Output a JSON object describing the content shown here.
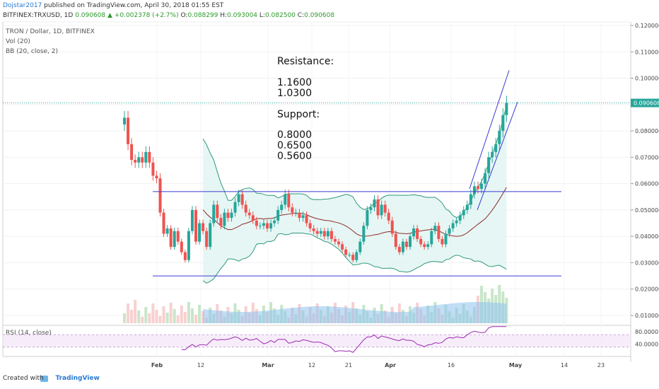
{
  "header": {
    "author": "Dojstar2017",
    "published": "published on TradingView.com, April 30, 2018 01:55 EST",
    "symbol": "BITFINEX:TRXUSD, 1D",
    "last": "0.090608",
    "change": "+0.002378 (+2.7%)",
    "ohlc": {
      "o": "0.088299",
      "h": "0.093004",
      "l": "0.082500",
      "c": "0.090608"
    }
  },
  "overlays": {
    "title": "TRON / Dollar, 1D, BITFINEX",
    "vol": "Vol (20)",
    "bb": "BB (20, close, 2)",
    "rsi": "RSI (14, close)"
  },
  "annotation": {
    "resistance_title": "Resistance:",
    "resistance": [
      "1.1600",
      "1.0300"
    ],
    "support_title": "Support:",
    "support": [
      "0.8000",
      "0.6500",
      "0.5600"
    ]
  },
  "footer": {
    "created_with": "Created with",
    "brand": "TradingView"
  },
  "colors": {
    "up": "#26a69a",
    "down": "#ef5350",
    "trend": "#3b3bd1",
    "bbband": "#2e9a7a",
    "bbmid": "#8b2c2c",
    "rsi": "#9c27b0",
    "price_label": "#26a69a"
  },
  "chart_data": {
    "type": "candlestick",
    "y_ticks": [
      "0.120000",
      "0.110000",
      "0.100000",
      "0.090000",
      "0.080000",
      "0.070000",
      "0.060000",
      "0.050000",
      "0.040000",
      "0.030000",
      "0.020000",
      "0.010000"
    ],
    "y_range": [
      0.0,
      0.12
    ],
    "x_ticks": [
      "Feb",
      "12",
      "Mar",
      "12",
      "21",
      "Apr",
      "16",
      "May",
      "14",
      "23"
    ],
    "last_price_label": "0.090608",
    "rsi_ticks": [
      "80.0000",
      "40.0000"
    ],
    "closes": [
      0.085,
      0.075,
      0.069,
      0.068,
      0.07,
      0.068,
      0.072,
      0.068,
      0.063,
      0.062,
      0.049,
      0.041,
      0.043,
      0.036,
      0.042,
      0.038,
      0.034,
      0.031,
      0.042,
      0.05,
      0.038,
      0.045,
      0.042,
      0.036,
      0.045,
      0.052,
      0.047,
      0.044,
      0.049,
      0.047,
      0.049,
      0.053,
      0.056,
      0.052,
      0.049,
      0.048,
      0.046,
      0.044,
      0.044,
      0.045,
      0.043,
      0.045,
      0.046,
      0.05,
      0.052,
      0.056,
      0.051,
      0.049,
      0.049,
      0.047,
      0.048,
      0.045,
      0.043,
      0.042,
      0.041,
      0.042,
      0.04,
      0.042,
      0.039,
      0.038,
      0.037,
      0.035,
      0.033,
      0.033,
      0.031,
      0.034,
      0.038,
      0.044,
      0.05,
      0.051,
      0.054,
      0.048,
      0.052,
      0.049,
      0.046,
      0.041,
      0.036,
      0.034,
      0.038,
      0.036,
      0.04,
      0.043,
      0.039,
      0.037,
      0.036,
      0.037,
      0.042,
      0.044,
      0.039,
      0.037,
      0.041,
      0.043,
      0.045,
      0.046,
      0.048,
      0.05,
      0.052,
      0.056,
      0.059,
      0.058,
      0.06,
      0.064,
      0.07,
      0.072,
      0.075,
      0.08,
      0.086,
      0.090608
    ],
    "resistance_channel": [
      0.057,
      0.057
    ],
    "support_channel": [
      0.025,
      0.025
    ]
  }
}
